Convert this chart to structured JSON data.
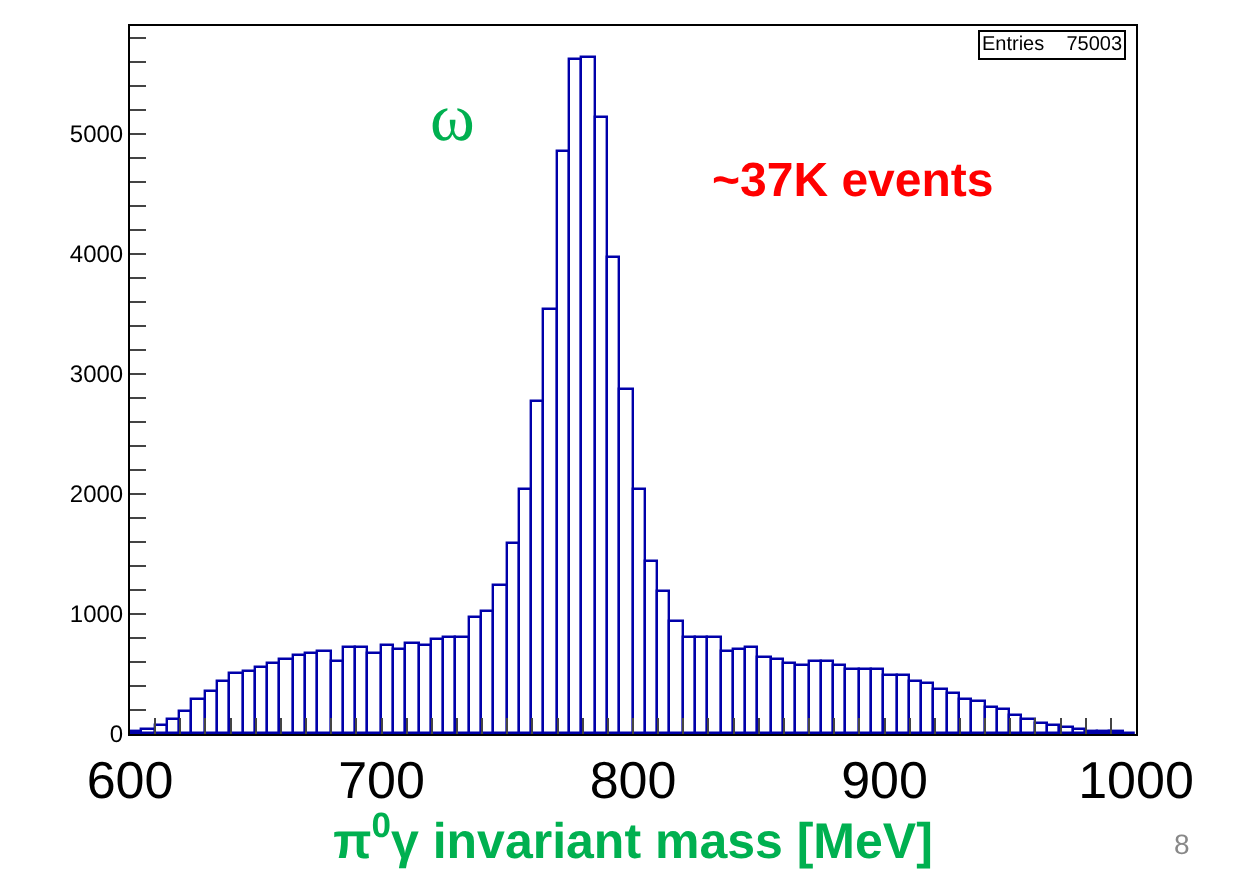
{
  "chart_data": {
    "type": "histogram",
    "xlabel": "π$^{0}$γ invariant mass [MeV]",
    "bins": [
      600,
      605,
      610,
      615,
      620,
      625,
      630,
      635,
      640,
      645,
      650,
      655,
      660,
      665,
      670,
      675,
      680,
      685,
      690,
      695,
      700,
      705,
      710,
      715,
      720,
      725,
      730,
      735,
      740,
      745,
      750,
      755,
      760,
      765,
      770,
      775,
      780,
      785,
      790,
      795,
      800,
      805,
      810,
      815,
      820,
      825,
      830,
      835,
      840,
      845,
      850,
      855,
      860,
      865,
      870,
      875,
      880,
      885,
      890,
      895,
      900,
      905,
      910,
      915,
      920,
      925,
      930,
      935,
      940,
      945,
      950,
      955,
      960,
      965,
      970,
      975,
      980,
      985,
      990,
      995,
      1000
    ],
    "values": [
      15,
      30,
      70,
      125,
      180,
      290,
      345,
      435,
      500,
      510,
      555,
      590,
      620,
      655,
      660,
      690,
      600,
      720,
      710,
      660,
      740,
      700,
      750,
      735,
      790,
      800,
      800,
      960,
      1010,
      1230,
      1590,
      2040,
      2770,
      3540,
      4850,
      5620,
      5630,
      5140,
      3960,
      2860,
      2040,
      1440,
      1190,
      930,
      800,
      800,
      800,
      680,
      700,
      720,
      640,
      620,
      590,
      570,
      600,
      600,
      570,
      530,
      530,
      540,
      490,
      480,
      440,
      410,
      370,
      340,
      290,
      260,
      220,
      200,
      150,
      125,
      90,
      70,
      50,
      35,
      25,
      15,
      10,
      5
    ],
    "color": "#0000aa",
    "xlim": [
      600,
      1000
    ],
    "ylim": [
      0,
      5900
    ],
    "xticks": [
      600,
      {
        "value": 610,
        "label": null
      },
      {
        "value": 620,
        "label": null
      },
      {
        "value": 630,
        "label": null
      },
      {
        "value": 640,
        "label": null
      },
      {
        "value": 650,
        "label": null
      },
      {
        "value": 660,
        "label": null
      },
      {
        "value": 670,
        "label": null
      },
      {
        "value": 680,
        "label": null
      },
      {
        "value": 690,
        "label": null
      },
      700,
      {
        "value": 710,
        "label": null
      },
      {
        "value": 720,
        "label": null
      },
      {
        "value": 730,
        "label": null
      },
      {
        "value": 740,
        "label": null
      },
      {
        "value": 750,
        "label": null
      },
      {
        "value": 760,
        "label": null
      },
      {
        "value": 770,
        "label": null
      },
      {
        "value": 780,
        "label": null
      },
      {
        "value": 790,
        "label": null
      },
      800,
      {
        "value": 810,
        "label": null
      },
      {
        "value": 820,
        "label": null
      },
      {
        "value": 830,
        "label": null
      },
      {
        "value": 840,
        "label": null
      },
      {
        "value": 850,
        "label": null
      },
      {
        "value": 860,
        "label": null
      },
      {
        "value": 870,
        "label": null
      },
      {
        "value": 880,
        "label": null
      },
      {
        "value": 890,
        "label": null
      },
      900,
      {
        "value": 910,
        "label": null
      },
      {
        "value": 920,
        "label": null
      },
      {
        "value": 930,
        "label": null
      },
      {
        "value": 940,
        "label": null
      },
      {
        "value": 950,
        "label": null
      },
      {
        "value": 960,
        "label": null
      },
      {
        "value": 970,
        "label": null
      },
      {
        "value": 980,
        "label": null
      },
      {
        "value": 990,
        "label": null
      },
      1000
    ],
    "yticks": [
      0,
      {
        "value": 200,
        "label": null
      },
      {
        "value": 400,
        "label": null
      },
      {
        "value": 600,
        "label": null
      },
      {
        "value": 800,
        "label": null
      },
      1000,
      {
        "value": 1200,
        "label": null
      },
      {
        "value": 1400,
        "label": null
      },
      {
        "value": 1600,
        "label": null
      },
      {
        "value": 1800,
        "label": null
      },
      2000,
      {
        "value": 2200,
        "label": null
      },
      {
        "value": 2400,
        "label": null
      },
      {
        "value": 2600,
        "label": null
      },
      {
        "value": 2800,
        "label": null
      },
      3000,
      {
        "value": 3200,
        "label": null
      },
      {
        "value": 3400,
        "label": null
      },
      {
        "value": 3600,
        "label": null
      },
      {
        "value": 3800,
        "label": null
      },
      4000,
      {
        "value": 4200,
        "label": null
      },
      {
        "value": 4400,
        "label": null
      },
      {
        "value": 4600,
        "label": null
      },
      {
        "value": 4800,
        "label": null
      },
      5000,
      {
        "value": 5200,
        "label": null
      },
      {
        "value": 5400,
        "label": null
      },
      {
        "value": 5600,
        "label": null
      },
      {
        "value": 5800,
        "label": null
      }
    ],
    "annotations": [
      "ω",
      "~37K events",
      "Entries    75003",
      "8"
    ]
  }
}
